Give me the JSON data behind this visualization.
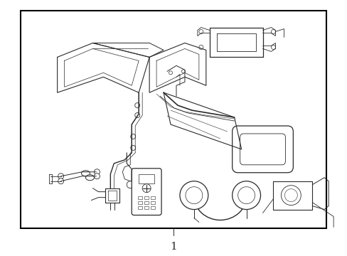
{
  "background_color": "#ffffff",
  "border_color": "#000000",
  "border_linewidth": 1.2,
  "label_text": "1",
  "label_fontsize": 11,
  "fig_width": 4.89,
  "fig_height": 3.6,
  "line_color": "#2a2a2a",
  "line_width": 0.7
}
